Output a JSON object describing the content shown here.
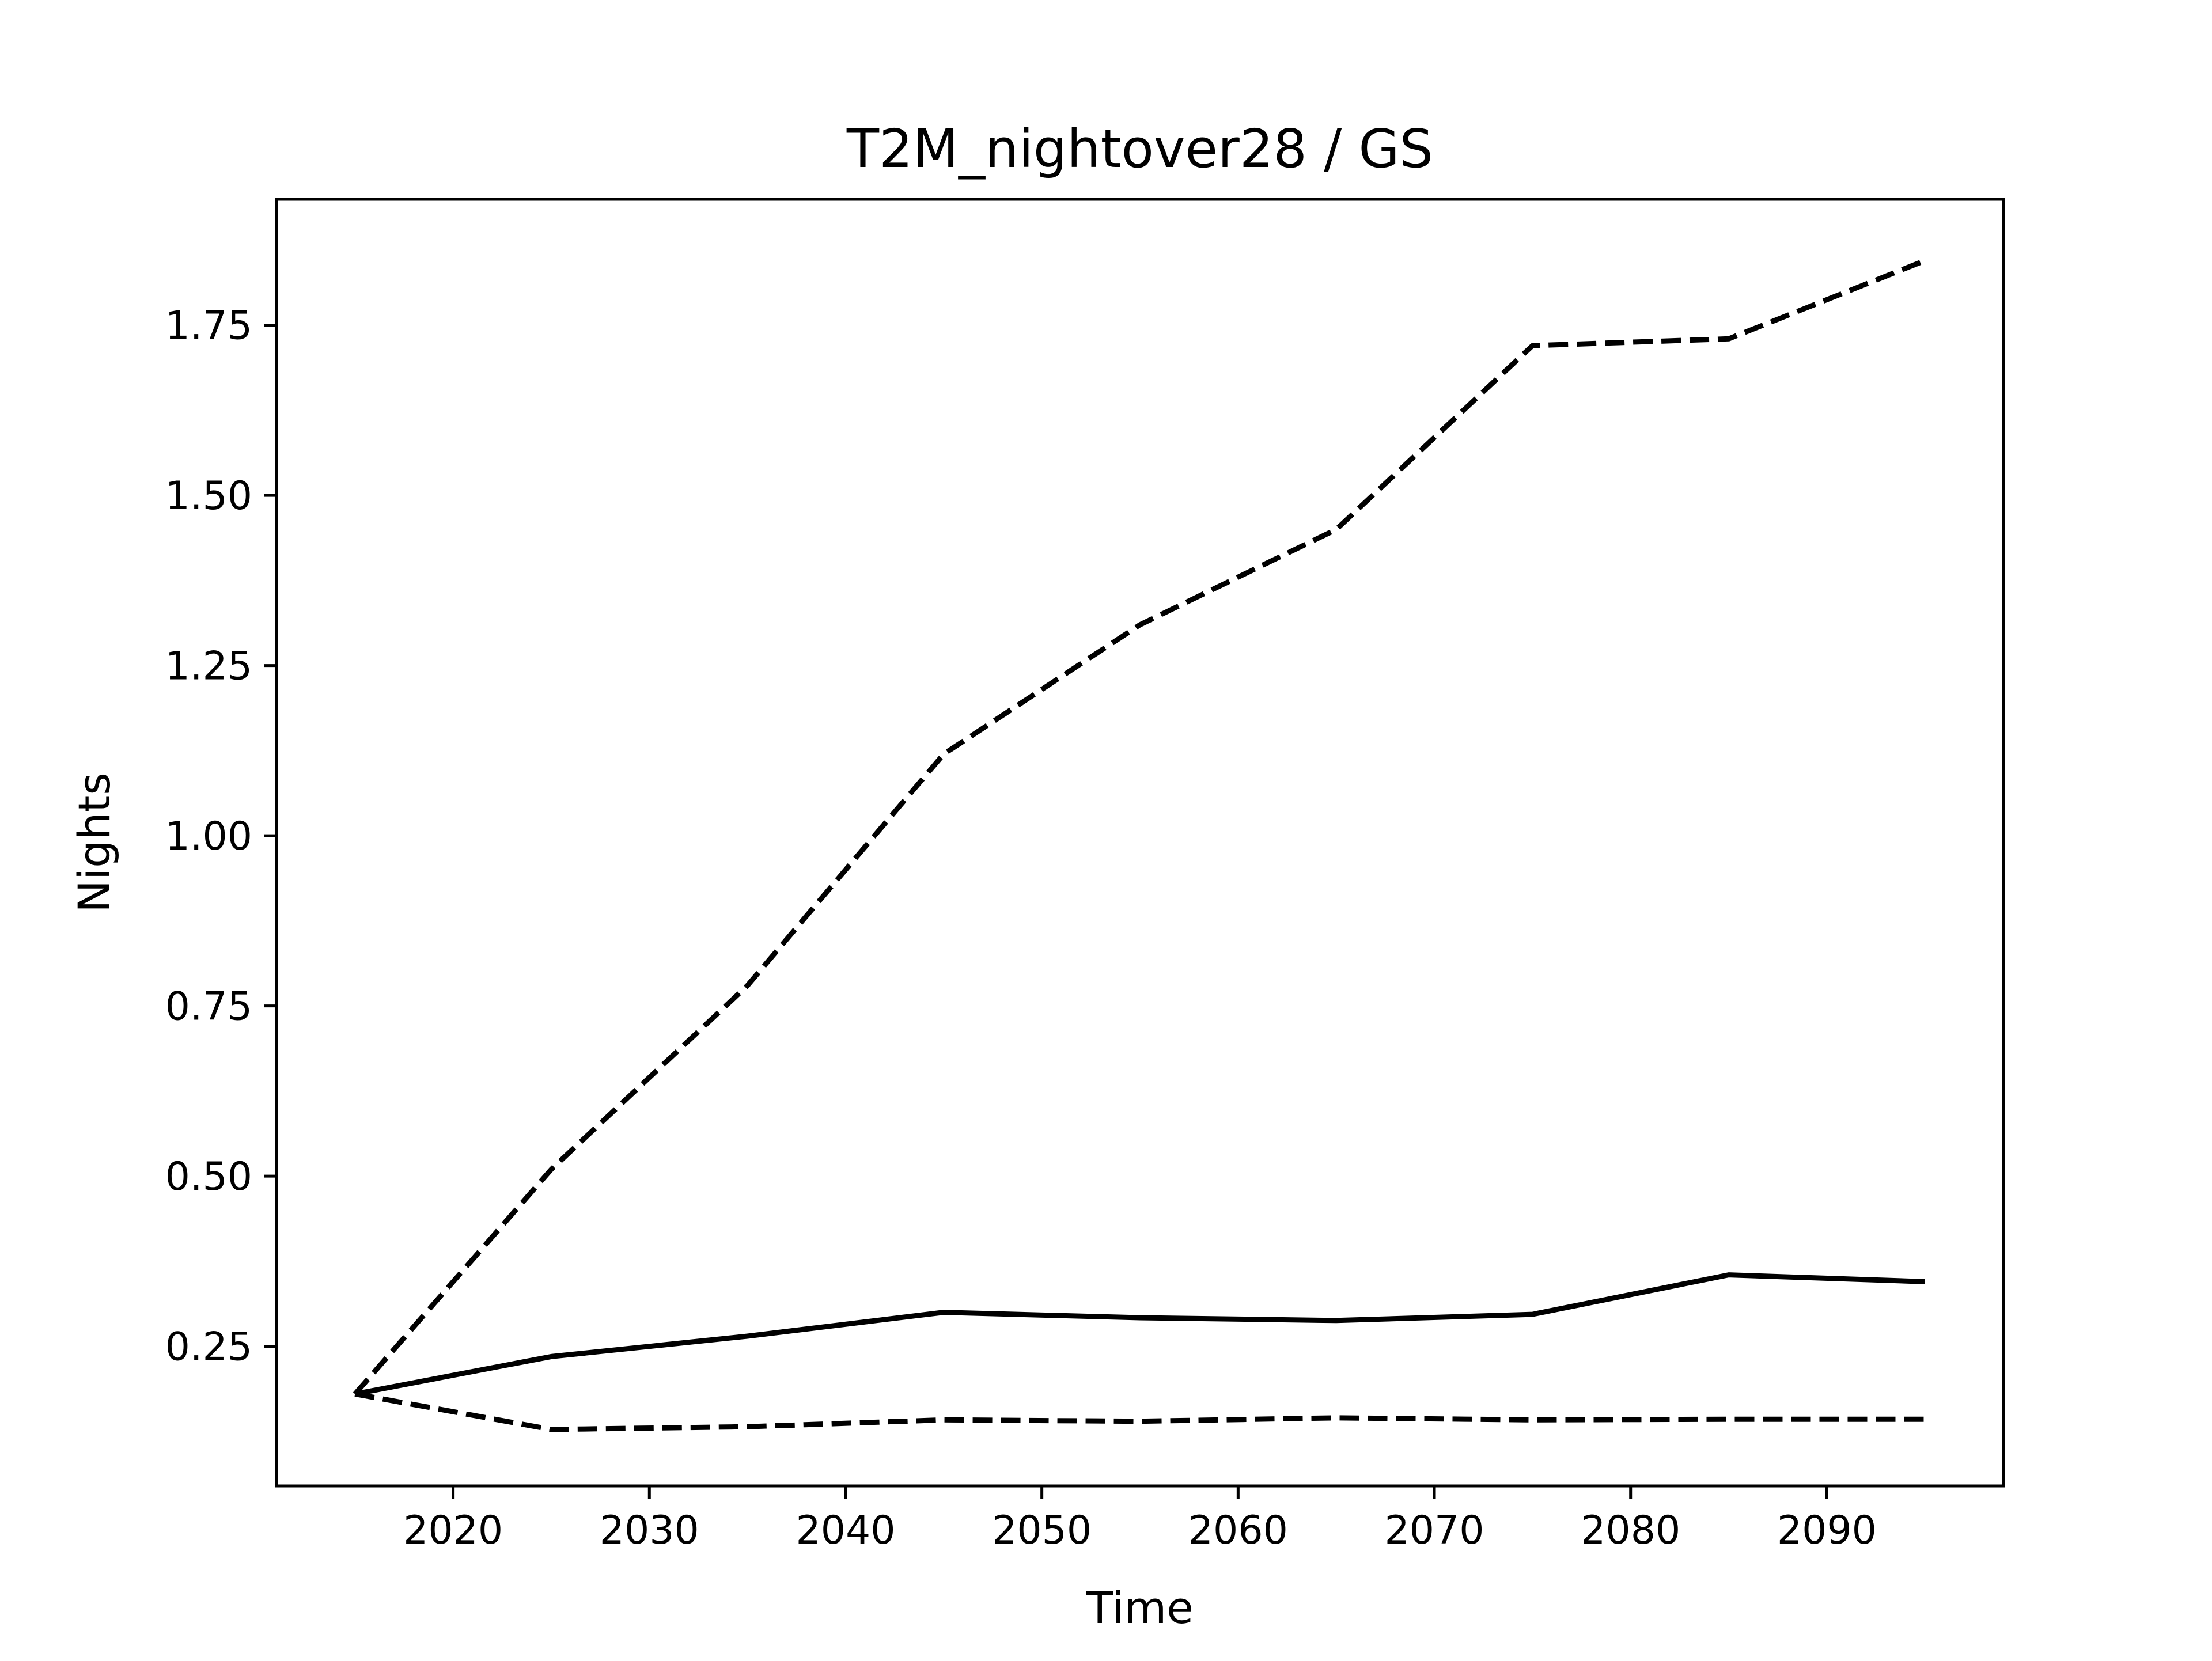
{
  "chart_data": {
    "type": "line",
    "title": "T2M_nightover28 / GS",
    "xlabel": "Time",
    "ylabel": "Nights",
    "xlim": [
      2011,
      2099
    ],
    "ylim": [
      0.045,
      1.935
    ],
    "grid": false,
    "legend": "none",
    "xticks": [
      2020,
      2030,
      2040,
      2050,
      2060,
      2070,
      2080,
      2090
    ],
    "xtick_labels": [
      "2020",
      "2030",
      "2040",
      "2050",
      "2060",
      "2070",
      "2080",
      "2090"
    ],
    "yticks": [
      0.25,
      0.5,
      0.75,
      1.0,
      1.25,
      1.5,
      1.75
    ],
    "ytick_labels": [
      "0.25",
      "0.50",
      "0.75",
      "1.00",
      "1.25",
      "1.50",
      "1.75"
    ],
    "x": [
      2015,
      2025,
      2035,
      2045,
      2055,
      2065,
      2075,
      2085,
      2095
    ],
    "series": [
      {
        "style": "solid",
        "color": "#000000",
        "values": [
          0.18,
          0.235,
          0.265,
          0.3,
          0.292,
          0.288,
          0.297,
          0.355,
          0.345
        ]
      },
      {
        "style": "dashed",
        "color": "#000000",
        "values": [
          0.18,
          0.51,
          0.78,
          1.12,
          1.31,
          1.45,
          1.72,
          1.73,
          1.845
        ]
      },
      {
        "style": "dashed",
        "color": "#000000",
        "values": [
          0.18,
          0.128,
          0.132,
          0.142,
          0.14,
          0.145,
          0.142,
          0.143,
          0.143
        ]
      }
    ]
  }
}
